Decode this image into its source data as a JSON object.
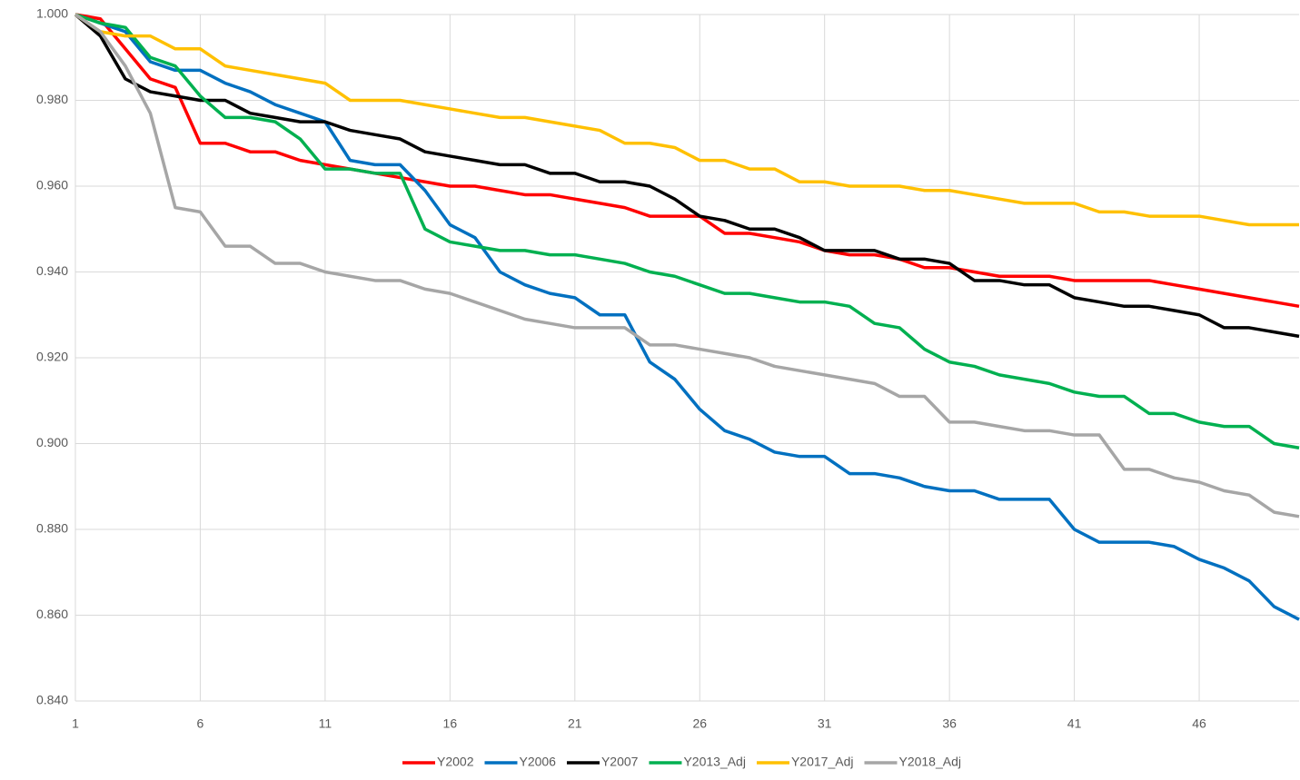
{
  "chart_data": {
    "type": "line",
    "x": [
      1,
      2,
      3,
      4,
      5,
      6,
      7,
      8,
      9,
      10,
      11,
      12,
      13,
      14,
      15,
      16,
      17,
      18,
      19,
      20,
      21,
      22,
      23,
      24,
      25,
      26,
      27,
      28,
      29,
      30,
      31,
      32,
      33,
      34,
      35,
      36,
      37,
      38,
      39,
      40,
      41,
      42,
      43,
      44,
      45,
      46,
      47,
      48,
      49,
      50
    ],
    "xlim": [
      1,
      50
    ],
    "xticks": [
      1,
      6,
      11,
      16,
      21,
      26,
      31,
      36,
      41,
      46
    ],
    "ylim": [
      0.84,
      1.0
    ],
    "yticks": [
      {
        "value": 0.84,
        "label": "0.840"
      },
      {
        "value": 0.86,
        "label": "0.860"
      },
      {
        "value": 0.88,
        "label": "0.880"
      },
      {
        "value": 0.9,
        "label": "0.900"
      },
      {
        "value": 0.92,
        "label": "0.920"
      },
      {
        "value": 0.94,
        "label": "0.940"
      },
      {
        "value": 0.96,
        "label": "0.960"
      },
      {
        "value": 0.98,
        "label": "0.980"
      },
      {
        "value": 1.0,
        "label": "1.000"
      }
    ],
    "grid": true,
    "legend": "bottom",
    "series": [
      {
        "name": "Y2002",
        "color": "#ff0000",
        "values": [
          1.0,
          0.999,
          0.992,
          0.985,
          0.983,
          0.97,
          0.97,
          0.968,
          0.968,
          0.966,
          0.965,
          0.964,
          0.963,
          0.962,
          0.961,
          0.96,
          0.96,
          0.959,
          0.958,
          0.958,
          0.957,
          0.956,
          0.955,
          0.953,
          0.953,
          0.953,
          0.949,
          0.949,
          0.948,
          0.947,
          0.945,
          0.944,
          0.944,
          0.943,
          0.941,
          0.941,
          0.94,
          0.939,
          0.939,
          0.939,
          0.938,
          0.938,
          0.938,
          0.938,
          0.937,
          0.936,
          0.935,
          0.934,
          0.933,
          0.932
        ]
      },
      {
        "name": "Y2006",
        "color": "#0070c0",
        "values": [
          1.0,
          0.998,
          0.996,
          0.989,
          0.987,
          0.987,
          0.984,
          0.982,
          0.979,
          0.977,
          0.975,
          0.966,
          0.965,
          0.965,
          0.959,
          0.951,
          0.948,
          0.94,
          0.937,
          0.935,
          0.934,
          0.93,
          0.93,
          0.919,
          0.915,
          0.908,
          0.903,
          0.901,
          0.898,
          0.897,
          0.897,
          0.893,
          0.893,
          0.892,
          0.89,
          0.889,
          0.889,
          0.887,
          0.887,
          0.887,
          0.88,
          0.877,
          0.877,
          0.877,
          0.876,
          0.873,
          0.871,
          0.868,
          0.862,
          0.859
        ]
      },
      {
        "name": "Y2007",
        "color": "#000000",
        "values": [
          1.0,
          0.995,
          0.985,
          0.982,
          0.981,
          0.98,
          0.98,
          0.977,
          0.976,
          0.975,
          0.975,
          0.973,
          0.972,
          0.971,
          0.968,
          0.967,
          0.966,
          0.965,
          0.965,
          0.963,
          0.963,
          0.961,
          0.961,
          0.96,
          0.957,
          0.953,
          0.952,
          0.95,
          0.95,
          0.948,
          0.945,
          0.945,
          0.945,
          0.943,
          0.943,
          0.942,
          0.938,
          0.938,
          0.937,
          0.937,
          0.934,
          0.933,
          0.932,
          0.932,
          0.931,
          0.93,
          0.927,
          0.927,
          0.926,
          0.925
        ]
      },
      {
        "name": "Y2013_Adj",
        "color": "#00b050",
        "values": [
          1.0,
          0.998,
          0.997,
          0.99,
          0.988,
          0.981,
          0.976,
          0.976,
          0.975,
          0.971,
          0.964,
          0.964,
          0.963,
          0.963,
          0.95,
          0.947,
          0.946,
          0.945,
          0.945,
          0.944,
          0.944,
          0.943,
          0.942,
          0.94,
          0.939,
          0.937,
          0.935,
          0.935,
          0.934,
          0.933,
          0.933,
          0.932,
          0.928,
          0.927,
          0.922,
          0.919,
          0.918,
          0.916,
          0.915,
          0.914,
          0.912,
          0.911,
          0.911,
          0.907,
          0.907,
          0.905,
          0.904,
          0.904,
          0.9,
          0.899
        ]
      },
      {
        "name": "Y2017_Adj",
        "color": "#ffc000",
        "values": [
          1.0,
          0.996,
          0.995,
          0.995,
          0.992,
          0.992,
          0.988,
          0.987,
          0.986,
          0.985,
          0.984,
          0.98,
          0.98,
          0.98,
          0.979,
          0.978,
          0.977,
          0.976,
          0.976,
          0.975,
          0.974,
          0.973,
          0.97,
          0.97,
          0.969,
          0.966,
          0.966,
          0.964,
          0.964,
          0.961,
          0.961,
          0.96,
          0.96,
          0.96,
          0.959,
          0.959,
          0.958,
          0.957,
          0.956,
          0.956,
          0.956,
          0.954,
          0.954,
          0.953,
          0.953,
          0.953,
          0.952,
          0.951,
          0.951,
          0.951
        ]
      },
      {
        "name": "Y2018_Adj",
        "color": "#a6a6a6",
        "values": [
          1.0,
          0.996,
          0.988,
          0.977,
          0.955,
          0.954,
          0.946,
          0.946,
          0.942,
          0.942,
          0.94,
          0.939,
          0.938,
          0.938,
          0.936,
          0.935,
          0.933,
          0.931,
          0.929,
          0.928,
          0.927,
          0.927,
          0.927,
          0.923,
          0.923,
          0.922,
          0.921,
          0.92,
          0.918,
          0.917,
          0.916,
          0.915,
          0.914,
          0.911,
          0.911,
          0.905,
          0.905,
          0.904,
          0.903,
          0.903,
          0.902,
          0.902,
          0.894,
          0.894,
          0.892,
          0.891,
          0.889,
          0.888,
          0.884,
          0.883
        ]
      }
    ]
  }
}
